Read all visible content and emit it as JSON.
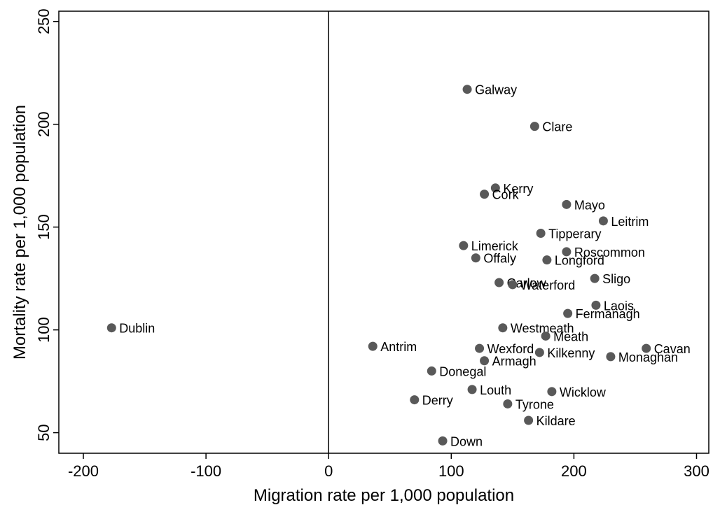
{
  "chart_data": {
    "type": "scatter",
    "title": "",
    "xlabel": "Migration rate per 1,000 population",
    "ylabel": "Mortality rate per 1,000 population",
    "xlim": [
      -220,
      310
    ],
    "ylim": [
      40,
      255
    ],
    "xticks": [
      -200,
      -100,
      0,
      100,
      200,
      300
    ],
    "yticks": [
      50,
      100,
      150,
      200,
      250
    ],
    "reference_line_x": 0,
    "grid": false,
    "marker_color": "#595959",
    "points": [
      {
        "label": "Galway",
        "x": 113,
        "y": 217
      },
      {
        "label": "Clare",
        "x": 168,
        "y": 199
      },
      {
        "label": "Kerry",
        "x": 136,
        "y": 169
      },
      {
        "label": "Cork",
        "x": 127,
        "y": 166
      },
      {
        "label": "Mayo",
        "x": 194,
        "y": 161
      },
      {
        "label": "Leitrim",
        "x": 224,
        "y": 153
      },
      {
        "label": "Tipperary",
        "x": 173,
        "y": 147
      },
      {
        "label": "Limerick",
        "x": 110,
        "y": 141
      },
      {
        "label": "Roscommon",
        "x": 194,
        "y": 138
      },
      {
        "label": "Offaly",
        "x": 120,
        "y": 135
      },
      {
        "label": "Longford",
        "x": 178,
        "y": 134
      },
      {
        "label": "Sligo",
        "x": 217,
        "y": 125
      },
      {
        "label": "Carlow",
        "x": 139,
        "y": 123
      },
      {
        "label": "Waterford",
        "x": 150,
        "y": 122
      },
      {
        "label": "Laois",
        "x": 218,
        "y": 112
      },
      {
        "label": "Fermanagh",
        "x": 195,
        "y": 108
      },
      {
        "label": "Dublin",
        "x": -177,
        "y": 101
      },
      {
        "label": "Westmeath",
        "x": 142,
        "y": 101
      },
      {
        "label": "Meath",
        "x": 177,
        "y": 97
      },
      {
        "label": "Antrim",
        "x": 36,
        "y": 92
      },
      {
        "label": "Cavan",
        "x": 259,
        "y": 91
      },
      {
        "label": "Wexford",
        "x": 123,
        "y": 91
      },
      {
        "label": "Kilkenny",
        "x": 172,
        "y": 89
      },
      {
        "label": "Monaghan",
        "x": 230,
        "y": 87
      },
      {
        "label": "Armagh",
        "x": 127,
        "y": 85
      },
      {
        "label": "Donegal",
        "x": 84,
        "y": 80
      },
      {
        "label": "Louth",
        "x": 117,
        "y": 71
      },
      {
        "label": "Wicklow",
        "x": 182,
        "y": 70
      },
      {
        "label": "Derry",
        "x": 70,
        "y": 66
      },
      {
        "label": "Tyrone",
        "x": 146,
        "y": 64
      },
      {
        "label": "Kildare",
        "x": 163,
        "y": 56
      },
      {
        "label": "Down",
        "x": 93,
        "y": 46
      }
    ]
  }
}
